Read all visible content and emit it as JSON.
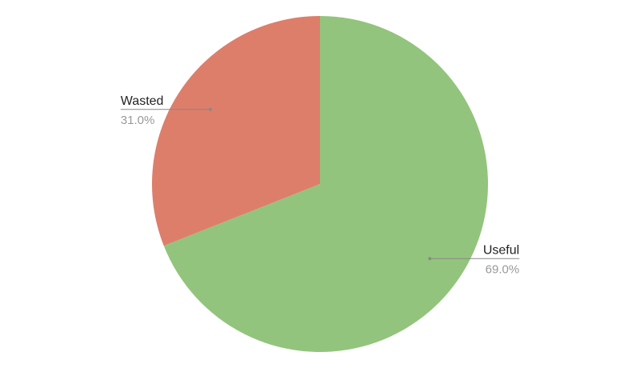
{
  "chart_data": {
    "type": "pie",
    "title": "",
    "slices": [
      {
        "label": "Useful",
        "value": 69.0,
        "value_label": "69.0%",
        "color": "#93C47D"
      },
      {
        "label": "Wasted",
        "value": 31.0,
        "value_label": "31.0%",
        "color": "#DD7E6B"
      }
    ],
    "start_angle_deg": 0,
    "direction": "clockwise",
    "label_style": "outside-with-leader-line",
    "legend": "none"
  }
}
